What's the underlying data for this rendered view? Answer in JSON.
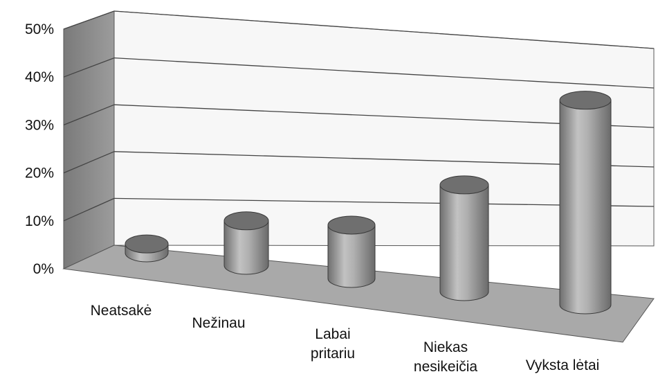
{
  "chart_data": {
    "type": "bar",
    "style": "3d-cylinder",
    "categories": [
      [
        "Neatsakė"
      ],
      [
        "Nežinau"
      ],
      [
        "Labai",
        "pritariu"
      ],
      [
        "Niekas",
        "nesikeičia"
      ],
      [
        "Vyksta lėtai"
      ]
    ],
    "values": [
      2,
      10,
      12,
      24,
      46
    ],
    "unit": "%",
    "ylim": [
      0,
      50
    ],
    "yticks": [
      "0%",
      "10%",
      "20%",
      "30%",
      "40%",
      "50%"
    ],
    "grid": true,
    "legend": "none",
    "colors": {
      "bar_body": "#9a9a9a",
      "bar_top": "#6e6e6e",
      "back_wall": "#f6f6f6",
      "side_wall": "#8c8c8c",
      "floor": "#a8a8a8"
    }
  }
}
